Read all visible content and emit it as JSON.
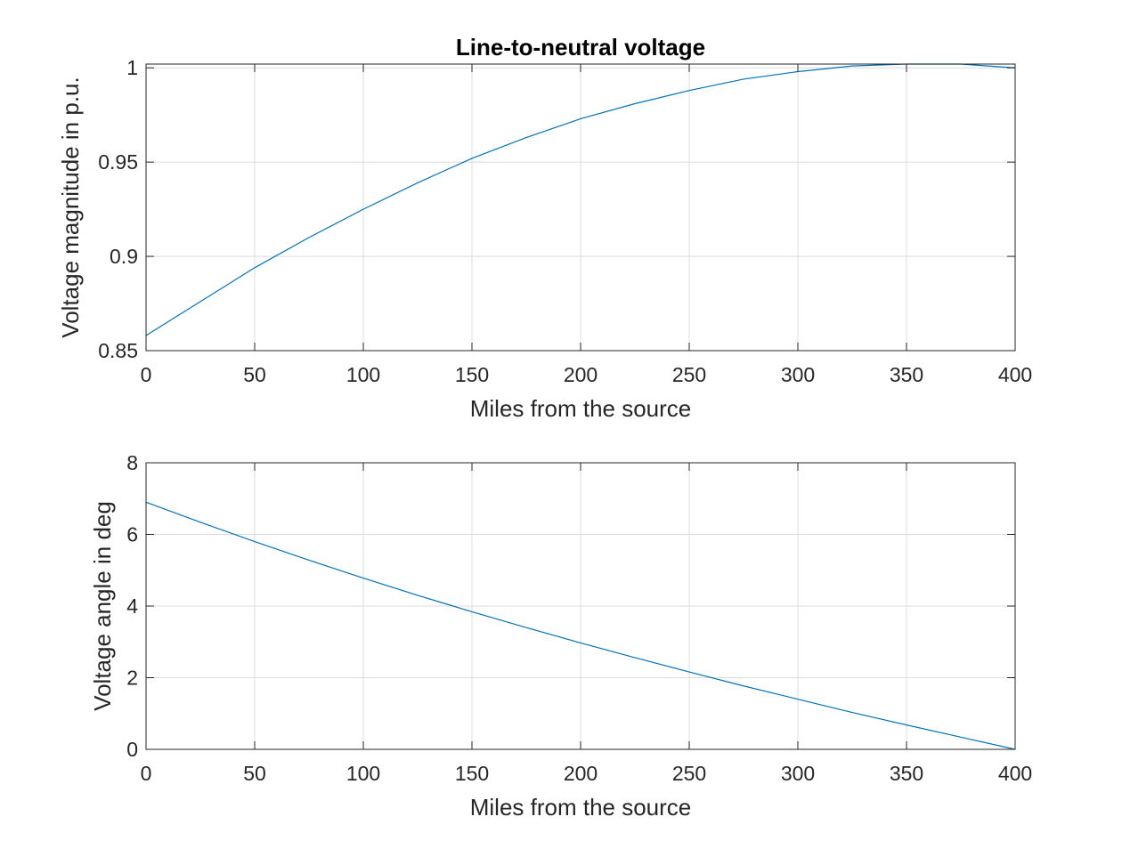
{
  "figure": {
    "title": "Line-to-neutral voltage"
  },
  "chart_data": [
    {
      "type": "line",
      "title": "Line-to-neutral voltage",
      "xlabel": "Miles from the source",
      "ylabel": "Voltage magnitude in p.u.",
      "xlim": [
        0,
        400
      ],
      "ylim": [
        0.85,
        1.002
      ],
      "xticks": [
        0,
        50,
        100,
        150,
        200,
        250,
        300,
        350,
        400
      ],
      "yticks": [
        0.85,
        0.9,
        0.95,
        1
      ],
      "ytick_labels": [
        "0.85",
        "0.9",
        "0.95",
        "1"
      ],
      "grid": true,
      "color": "#0072BD",
      "series": [
        {
          "x": [
            0,
            25,
            50,
            75,
            100,
            125,
            150,
            175,
            200,
            225,
            250,
            275,
            300,
            325,
            350,
            375,
            400
          ],
          "values": [
            0.858,
            0.876,
            0.894,
            0.91,
            0.925,
            0.939,
            0.952,
            0.963,
            0.973,
            0.981,
            0.988,
            0.994,
            0.998,
            1.001,
            1.002,
            1.002,
            1.0
          ]
        }
      ]
    },
    {
      "type": "line",
      "title": "",
      "xlabel": "Miles from the source",
      "ylabel": "Voltage angle in deg",
      "xlim": [
        0,
        400
      ],
      "ylim": [
        0,
        8
      ],
      "xticks": [
        0,
        50,
        100,
        150,
        200,
        250,
        300,
        350,
        400
      ],
      "yticks": [
        0,
        2,
        4,
        6,
        8
      ],
      "ytick_labels": [
        "0",
        "2",
        "4",
        "6",
        "8"
      ],
      "grid": true,
      "color": "#0072BD",
      "series": [
        {
          "x": [
            0,
            25,
            50,
            75,
            100,
            125,
            150,
            175,
            200,
            225,
            250,
            275,
            300,
            325,
            350,
            375,
            400
          ],
          "values": [
            6.9,
            6.34,
            5.8,
            5.28,
            4.78,
            4.3,
            3.84,
            3.4,
            2.97,
            2.56,
            2.16,
            1.77,
            1.4,
            1.03,
            0.68,
            0.34,
            0.0
          ]
        }
      ]
    }
  ]
}
